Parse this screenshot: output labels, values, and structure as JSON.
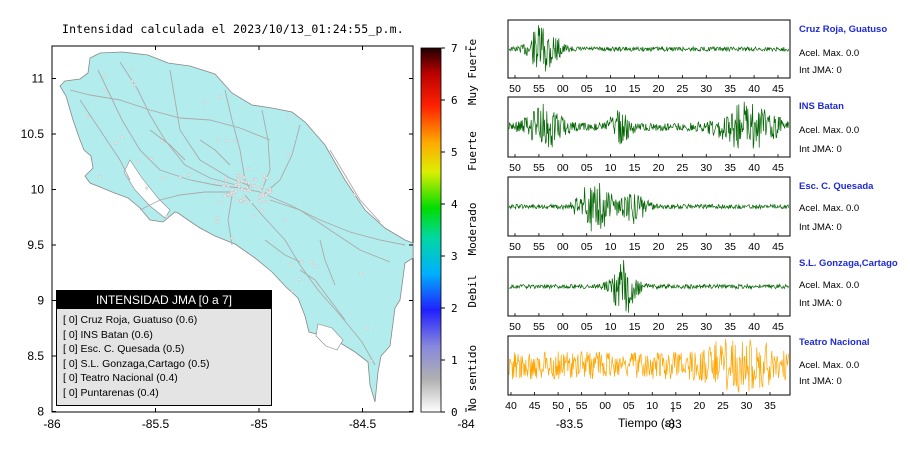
{
  "map": {
    "title": "Intensidad calculada el 2023/10/13_01:24:55_p.m.",
    "x_ticks": [
      "-86",
      "-85.5",
      "-85",
      "-84.5",
      "-84",
      "-83.5",
      "-83"
    ],
    "y_ticks": [
      "11",
      "10.5",
      "10",
      "9.5",
      "9",
      "8.5",
      "8"
    ],
    "land_color": "#b3eced",
    "road_color": "#aaaaaa",
    "legend": {
      "header": "INTENSIDAD JMA [0 a 7]",
      "rows": [
        "[ 0]  Cruz Roja, Guatuso (0.6)",
        "[ 0]  INS Batan (0.6)",
        "[ 0]  Esc. C. Quesada (0.5)",
        "[ 0]  S.L. Gonzaga,Cartago (0.5)",
        "[ 0]  Teatro Nacional (0.4)",
        "[ 0]  Puntarenas (0.4)"
      ]
    }
  },
  "colorbar": {
    "ticks": [
      "7",
      "6",
      "5",
      "4",
      "3",
      "2",
      "1",
      "0"
    ],
    "category_labels": [
      "Muy Fuerte",
      "Fuerte",
      "Moderado",
      "Debil",
      "No sentido"
    ]
  },
  "stations": [
    {
      "name": "Cruz Roja, Guatuso",
      "accel": "Acel. Max. 0.0",
      "jma": "Int JMA: 0",
      "color": "#006400",
      "ticks": [
        "50",
        "55",
        "00",
        "05",
        "10",
        "15",
        "20",
        "25",
        "30",
        "35",
        "40",
        "45"
      ]
    },
    {
      "name": "INS Batan",
      "accel": "Acel. Max. 0.0",
      "jma": "Int JMA: 0",
      "color": "#006400",
      "ticks": [
        "50",
        "55",
        "00",
        "05",
        "10",
        "15",
        "20",
        "25",
        "30",
        "35",
        "40",
        "45"
      ]
    },
    {
      "name": "Esc. C. Quesada",
      "accel": "Acel. Max. 0.0",
      "jma": "Int JMA: 0",
      "color": "#006400",
      "ticks": [
        "50",
        "55",
        "00",
        "05",
        "10",
        "15",
        "20",
        "25",
        "30",
        "35",
        "40",
        "45"
      ]
    },
    {
      "name": "S.L. Gonzaga,Cartago",
      "accel": "Acel. Max. 0.0",
      "jma": "Int JMA: 0",
      "color": "#006400",
      "ticks": [
        "50",
        "55",
        "00",
        "05",
        "10",
        "15",
        "20",
        "25",
        "30",
        "35",
        "40",
        "45"
      ]
    },
    {
      "name": "Teatro Nacional",
      "accel": "Acel. Max. 0.0",
      "jma": "Int JMA: 0",
      "color": "#ffa500",
      "ticks": [
        "40",
        "45",
        "50",
        "55",
        "00",
        "05",
        "10",
        "15",
        "20",
        "25",
        "30",
        "35"
      ]
    }
  ],
  "xlabel": "Tiempo (s)"
}
